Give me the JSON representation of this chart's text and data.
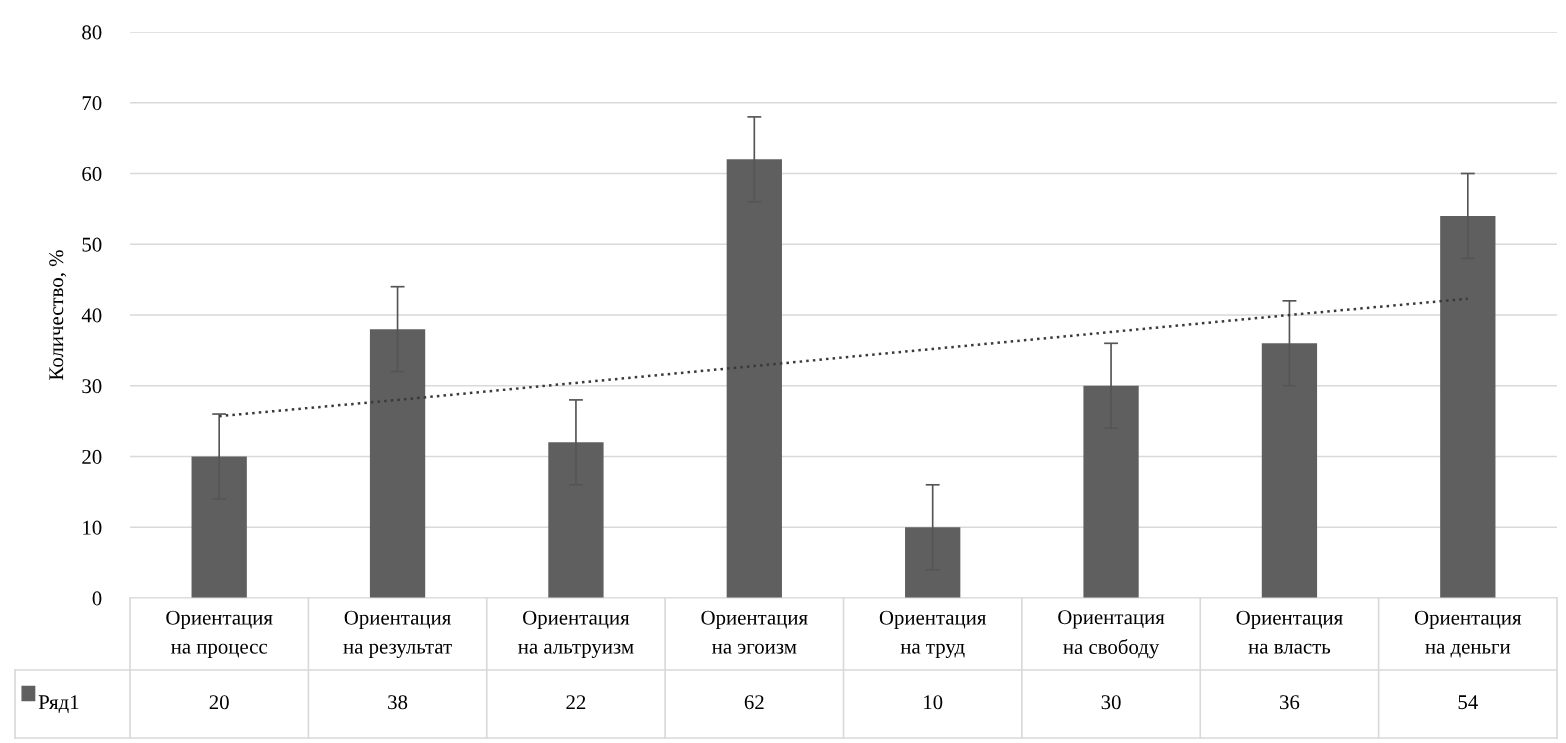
{
  "chart_data": {
    "type": "bar",
    "ylabel": "Количество, %",
    "categories": [
      "Ориентация\nна процесс",
      "Ориентация\nна результат",
      "Ориентация\nна альтруизм",
      "Ориентация\nна эгоизм",
      "Ориентация\nна труд",
      "Ориентация\nна свободу",
      "Ориентация\nна власть",
      "Ориентация\nна деньги"
    ],
    "series": [
      {
        "name": "Ряд1",
        "color": "#5f5f5f",
        "values": [
          20,
          38,
          22,
          62,
          10,
          30,
          36,
          54
        ],
        "errors": [
          6,
          6,
          6,
          6,
          6,
          6,
          6,
          6
        ],
        "value_labels": [
          "20",
          "38",
          "22",
          "62",
          "10",
          "30",
          "36",
          "54"
        ]
      },
      {
        "type": "line",
        "color": "#3a3a3a",
        "line_style": "dotted",
        "values": [
          25.7,
          28.0,
          30.4,
          32.8,
          35.2,
          37.6,
          40.0,
          42.3
        ]
      }
    ],
    "ylim": [
      0,
      80
    ],
    "yticks": [
      0,
      10,
      20,
      30,
      40,
      50,
      60,
      70,
      80
    ],
    "grid": "y",
    "legend": "bottom"
  }
}
